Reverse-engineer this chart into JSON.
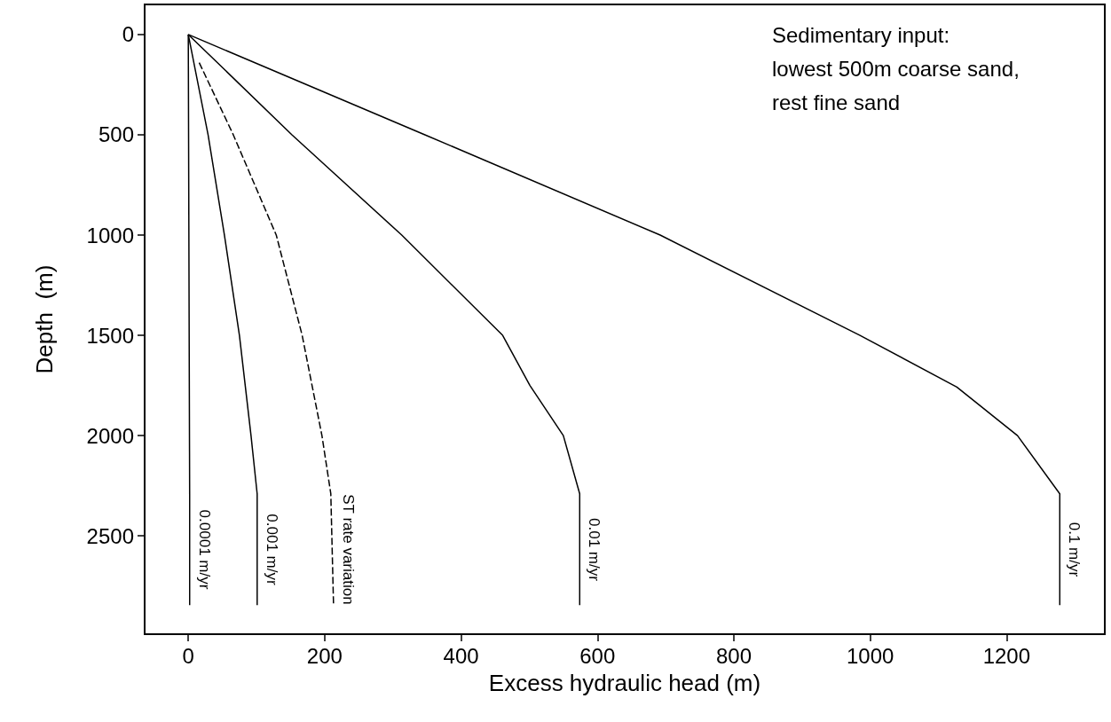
{
  "chart_data": {
    "type": "line",
    "xlabel": "Excess hydraulic head (m)",
    "ylabel": "Depth  (m)",
    "xlim": [
      -64,
      1344
    ],
    "xticks": [
      0,
      200,
      400,
      600,
      800,
      1000,
      1200
    ],
    "ylim": [
      2990,
      -150
    ],
    "yticks": [
      0,
      500,
      1000,
      1500,
      2000,
      2500
    ],
    "marker": "none",
    "series": [
      {
        "name": "0.0001 m/yr",
        "color": "#000000",
        "line_style": "solid",
        "x": [
          0,
          2,
          2
        ],
        "values": [
          0,
          2290,
          2845
        ]
      },
      {
        "name": "0.001 m/yr",
        "color": "#000000",
        "line_style": "solid",
        "x": [
          0,
          29,
          53,
          75,
          92,
          101,
          101
        ],
        "values": [
          0,
          500,
          1000,
          1500,
          2000,
          2290,
          2845
        ]
      },
      {
        "name": "ST rate variation",
        "color": "#000000",
        "line_style": "dashed",
        "x": [
          16,
          66,
          129,
          167,
          196,
          209,
          213
        ],
        "values": [
          140,
          500,
          1000,
          1500,
          2000,
          2290,
          2845
        ]
      },
      {
        "name": "0.01 m/yr",
        "color": "#000000",
        "line_style": "solid",
        "x": [
          0,
          152,
          313,
          461,
          501,
          550,
          574,
          574
        ],
        "values": [
          0,
          500,
          1000,
          1500,
          1750,
          2000,
          2290,
          2845
        ]
      },
      {
        "name": "0.1 m/yr",
        "color": "#000000",
        "line_style": "solid",
        "x": [
          0,
          347,
          692,
          985,
          1127,
          1216,
          1278,
          1278
        ],
        "values": [
          0,
          500,
          1000,
          1500,
          1758,
          2000,
          2290,
          2845
        ]
      }
    ],
    "annotations": [
      "Sedimentary input:\nlowest 500m coarse sand,\nrest fine sand"
    ]
  }
}
